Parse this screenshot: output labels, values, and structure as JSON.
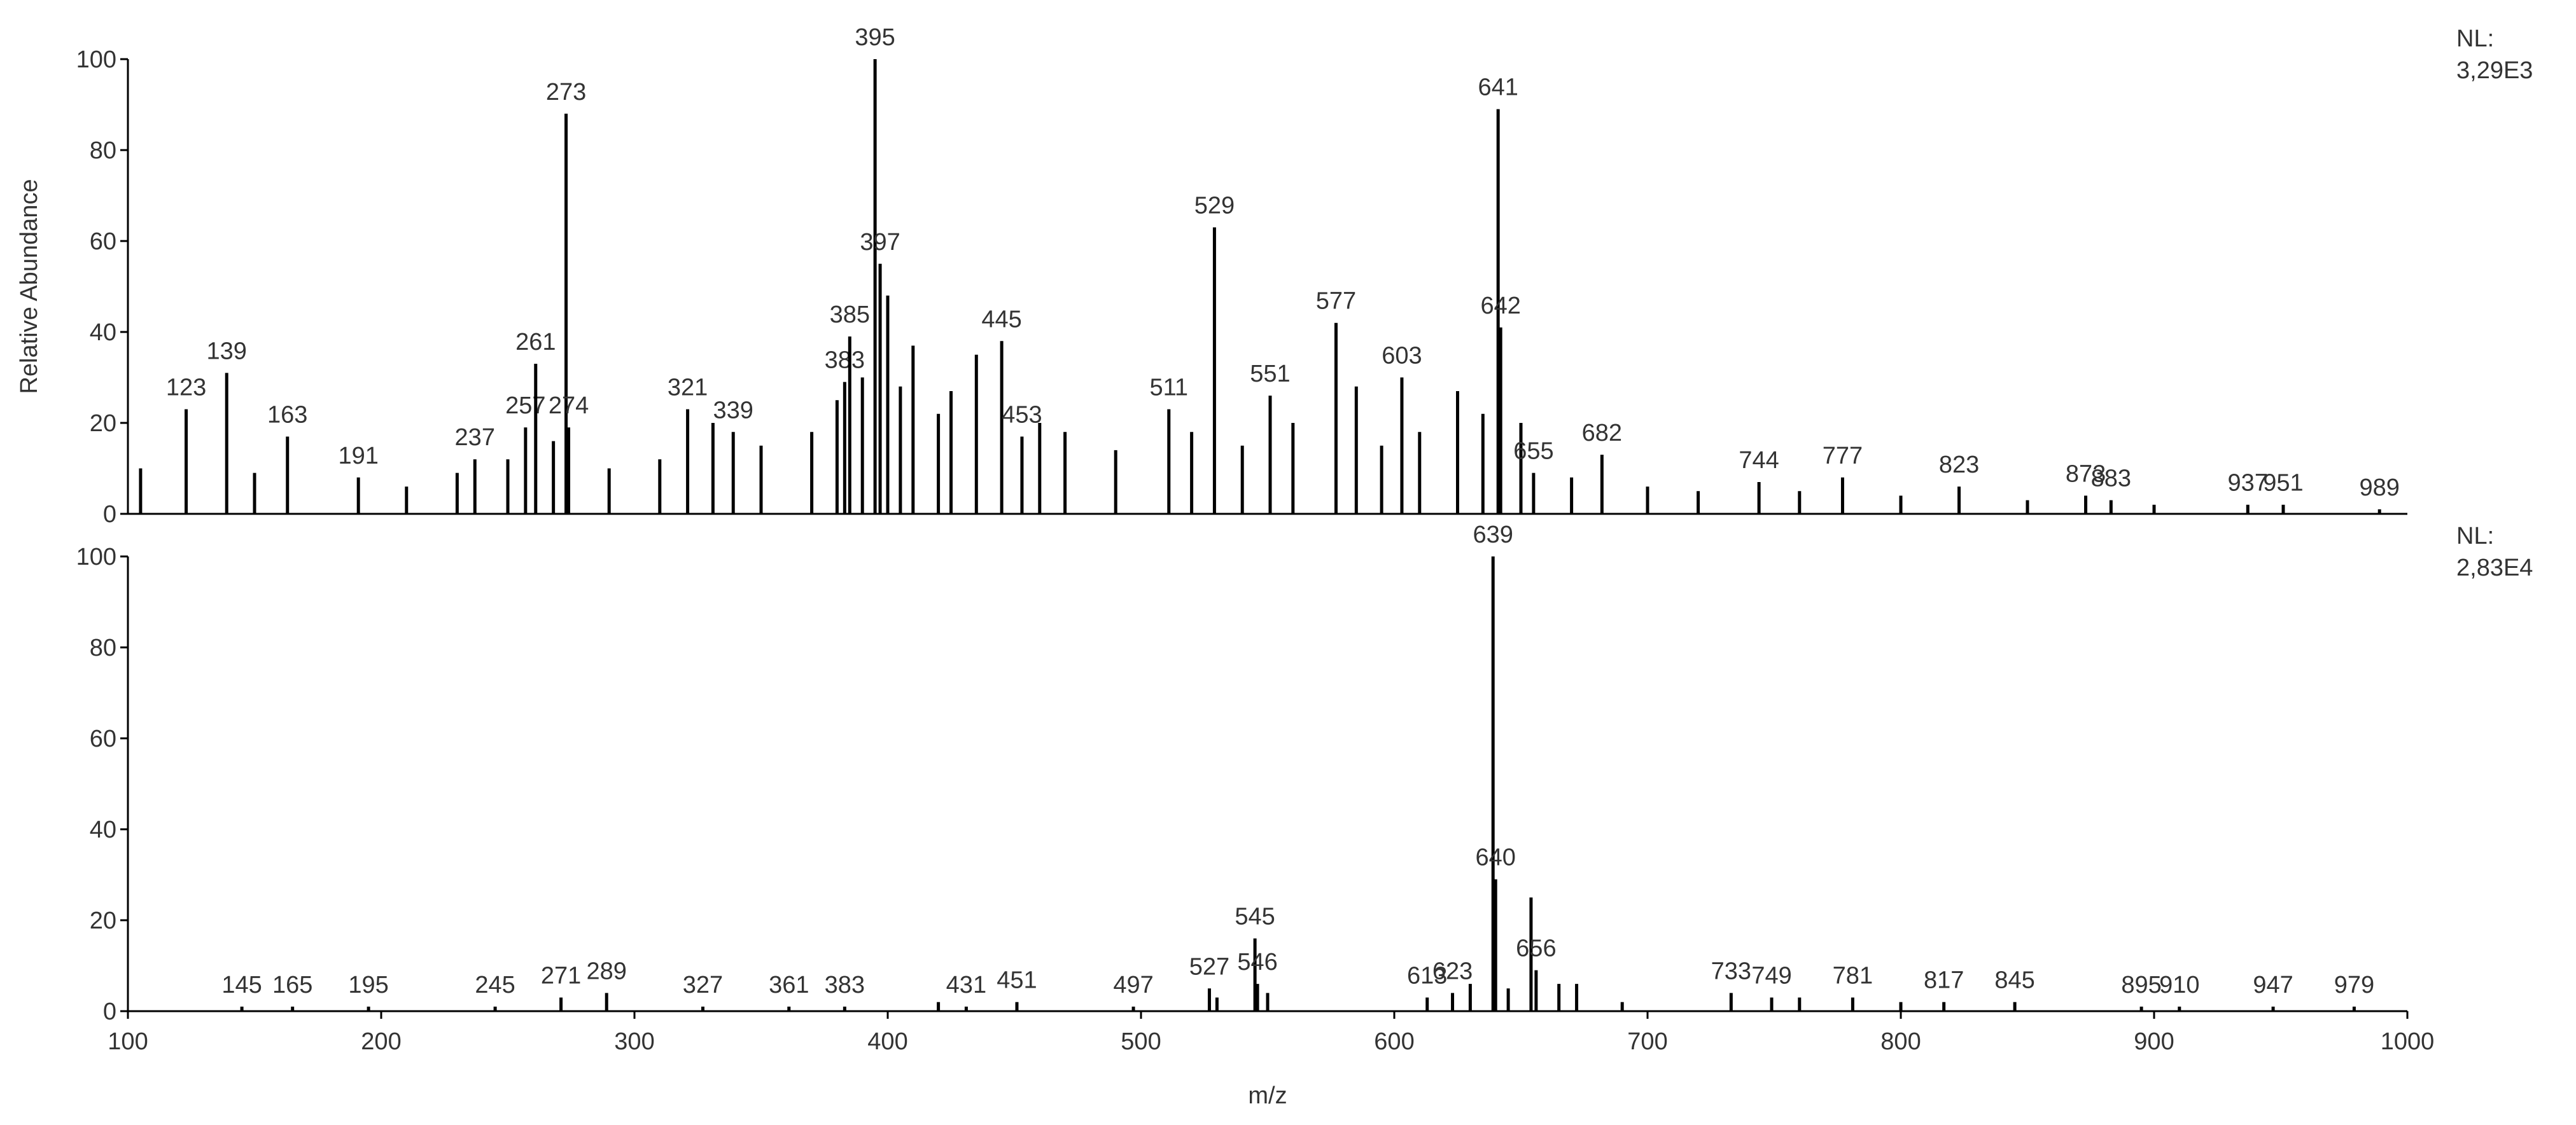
{
  "chart_data": [
    {
      "type": "bar",
      "ylabel": "Relative Abundance",
      "nl_label": "NL:",
      "nl_value": "3,29E3",
      "xlim": [
        100,
        1000
      ],
      "ylim": [
        0,
        100
      ],
      "yticks": [
        0,
        20,
        40,
        60,
        80,
        100
      ],
      "color": "#000000",
      "peaks": {
        "x": [
          123,
          139,
          163,
          191,
          237,
          257,
          261,
          273,
          274,
          321,
          339,
          383,
          385,
          395,
          397,
          445,
          453,
          511,
          529,
          551,
          577,
          603,
          641,
          642,
          655,
          682,
          744,
          777,
          823,
          873,
          883,
          937,
          951,
          989
        ],
        "values": [
          23,
          31,
          17,
          8,
          12,
          19,
          33,
          88,
          19,
          23,
          18,
          29,
          39,
          100,
          55,
          38,
          17,
          23,
          63,
          26,
          42,
          30,
          89,
          41,
          9,
          13,
          7,
          8,
          6,
          4,
          3,
          2,
          2,
          1
        ]
      },
      "other_peaks": {
        "x": [
          105,
          150,
          210,
          230,
          250,
          268,
          290,
          310,
          331,
          350,
          370,
          380,
          390,
          400,
          405,
          410,
          420,
          425,
          435,
          460,
          470,
          490,
          520,
          540,
          560,
          585,
          595,
          610,
          625,
          635,
          650,
          670,
          700,
          720,
          760,
          800,
          850,
          900
        ],
        "values": [
          10,
          9,
          6,
          9,
          12,
          16,
          10,
          12,
          20,
          15,
          18,
          25,
          30,
          48,
          28,
          37,
          22,
          27,
          35,
          20,
          18,
          14,
          18,
          15,
          20,
          28,
          15,
          18,
          27,
          22,
          20,
          8,
          6,
          5,
          5,
          4,
          3,
          2
        ]
      }
    },
    {
      "type": "bar",
      "xlabel": "m/z",
      "nl_label": "NL:",
      "nl_value": "2,83E4",
      "xlim": [
        100,
        1000
      ],
      "xticks": [
        100,
        200,
        300,
        400,
        500,
        600,
        700,
        800,
        900,
        1000
      ],
      "ylim": [
        0,
        100
      ],
      "yticks": [
        0,
        20,
        40,
        60,
        80,
        100
      ],
      "color": "#000000",
      "peaks": {
        "x": [
          145,
          165,
          195,
          245,
          271,
          289,
          327,
          361,
          383,
          431,
          451,
          497,
          527,
          545,
          546,
          613,
          623,
          639,
          640,
          656,
          733,
          749,
          781,
          817,
          845,
          895,
          910,
          947,
          979
        ],
        "values": [
          1,
          1,
          1,
          1,
          3,
          4,
          1,
          1,
          1,
          1,
          2,
          1,
          5,
          16,
          6,
          3,
          4,
          100,
          29,
          9,
          4,
          3,
          3,
          2,
          2,
          1,
          1,
          1,
          1
        ]
      },
      "other_peaks": {
        "x": [
          420,
          530,
          550,
          630,
          645,
          654,
          665,
          672,
          690,
          760,
          800
        ],
        "values": [
          2,
          3,
          4,
          6,
          5,
          25,
          6,
          6,
          2,
          3,
          2
        ]
      }
    }
  ]
}
